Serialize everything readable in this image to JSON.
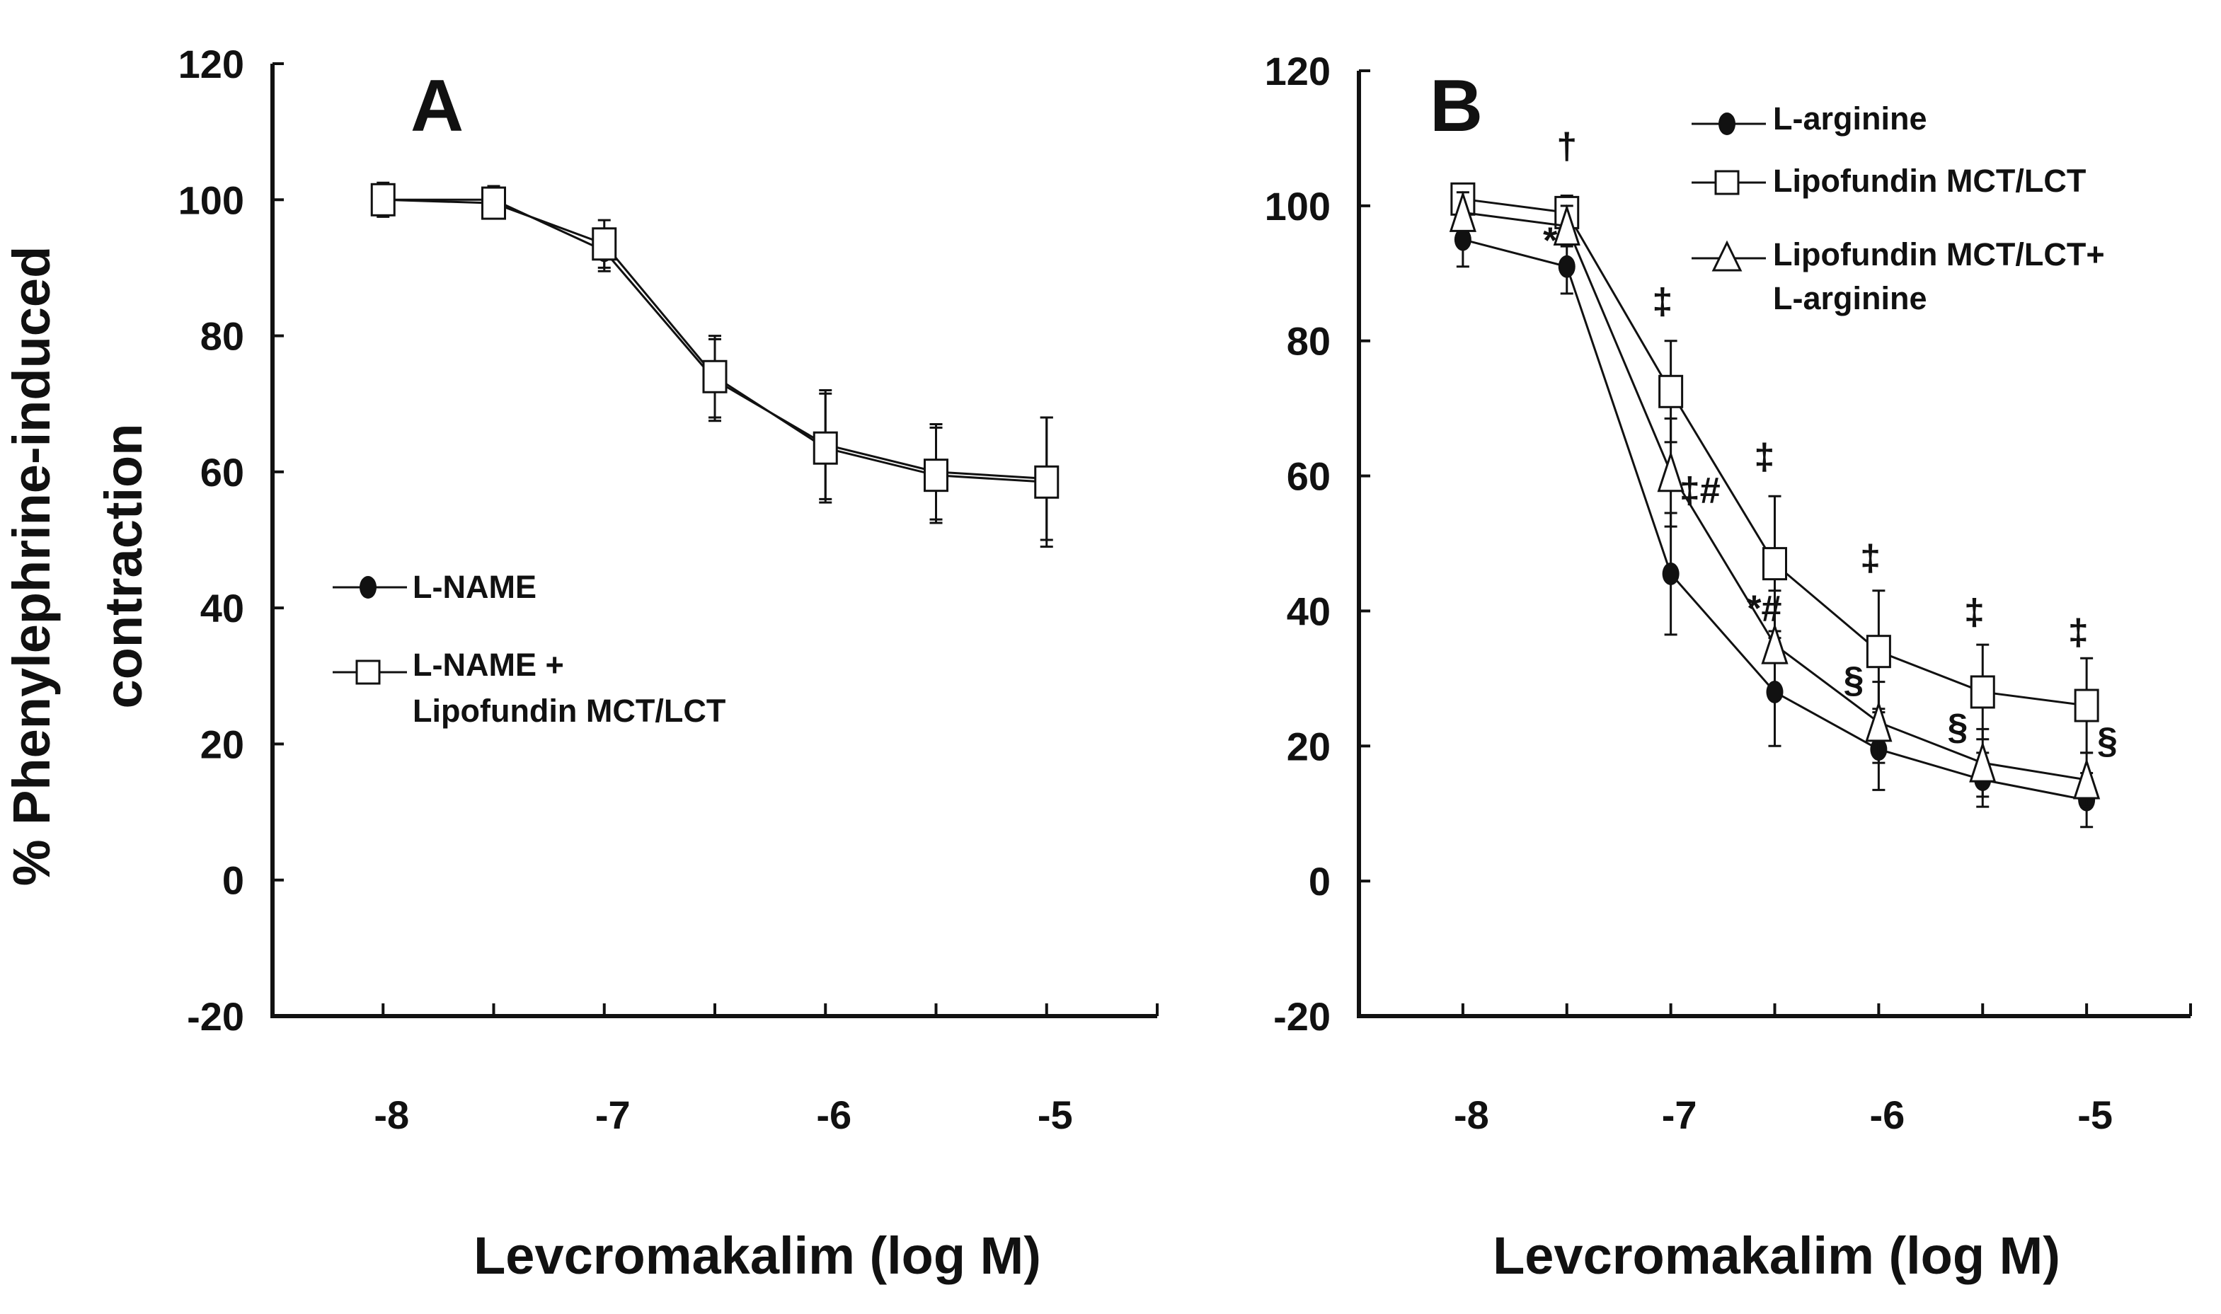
{
  "chart_data": [
    {
      "type": "line",
      "panel_label": "A",
      "xlabel": "Levcromakalim (log M)",
      "ylabel": [
        "% Phenylephrine-induced",
        "contraction"
      ],
      "ylim": [
        -20,
        120
      ],
      "xlim": [
        -8.5,
        -4.5
      ],
      "yticks": [
        -20,
        0,
        20,
        40,
        60,
        80,
        100,
        120
      ],
      "xticks": [
        -8,
        -7,
        -6,
        -5
      ],
      "x": [
        -8,
        -7.5,
        -7,
        -6.5,
        -6,
        -5.5,
        -5
      ],
      "legend_position": "middle-left",
      "series": [
        {
          "name": "L-NAME",
          "marker": "filled-circle",
          "values": [
            100,
            100,
            92.5,
            73.5,
            64,
            60,
            59
          ],
          "errors": [
            2,
            2,
            3,
            6,
            8,
            7,
            9
          ]
        },
        {
          "name": "L-NAME  + Lipofundin MCT/LCT",
          "legend_lines": [
            "L-NAME  +",
            "Lipofundin MCT/LCT"
          ],
          "marker": "open-square",
          "values": [
            100,
            99.5,
            93.5,
            74,
            63.5,
            59.5,
            58.5
          ],
          "errors": [
            2.5,
            2,
            3.5,
            6,
            8,
            7,
            9.5
          ]
        }
      ]
    },
    {
      "type": "line",
      "panel_label": "B",
      "xlabel": "Levcromakalim (log M)",
      "ylim": [
        -20,
        120
      ],
      "xlim": [
        -8.5,
        -4.5
      ],
      "yticks": [
        -20,
        0,
        20,
        40,
        60,
        80,
        100,
        120
      ],
      "xticks": [
        -8,
        -7,
        -6,
        -5
      ],
      "x": [
        -8,
        -7.5,
        -7,
        -6.5,
        -6,
        -5.5,
        -5
      ],
      "legend_position": "top-right",
      "series": [
        {
          "name": "L-arginine",
          "marker": "filled-circle",
          "values": [
            95,
            91,
            45.5,
            28,
            19.5,
            15,
            12
          ],
          "errors": [
            4,
            4,
            9,
            8,
            6,
            4,
            4
          ]
        },
        {
          "name": "Lipofundin MCT/LCT",
          "marker": "open-square",
          "values": [
            101,
            99,
            72.5,
            47,
            34,
            28,
            26
          ],
          "errors": [
            2,
            2.5,
            7.5,
            10,
            9,
            7,
            7
          ]
        },
        {
          "name": "Lipofundin MCT/LCT+ L-arginine",
          "legend_lines": [
            "Lipofundin MCT/LCT+",
            "L-arginine"
          ],
          "marker": "open-triangle",
          "values": [
            99,
            97,
            60.5,
            35,
            23.5,
            17.5,
            15
          ],
          "errors": [
            3,
            3,
            8,
            8,
            6,
            5,
            4
          ]
        }
      ],
      "annotations": [
        {
          "text": "†",
          "x": -7.5,
          "y": 107
        },
        {
          "text": "*",
          "x": -7.58,
          "y": 93
        },
        {
          "text": "‡",
          "x": -7.04,
          "y": 84
        },
        {
          "text": "‡#",
          "x": -6.86,
          "y": 56
        },
        {
          "text": "‡",
          "x": -6.55,
          "y": 61
        },
        {
          "text": "*#",
          "x": -6.55,
          "y": 38.5
        },
        {
          "text": "§",
          "x": -6.12,
          "y": 28
        },
        {
          "text": "‡",
          "x": -6.04,
          "y": 46
        },
        {
          "text": "§",
          "x": -5.62,
          "y": 21
        },
        {
          "text": "‡",
          "x": -5.54,
          "y": 38
        },
        {
          "text": "§",
          "x": -4.9,
          "y": 19
        },
        {
          "text": "‡",
          "x": -5.04,
          "y": 35
        }
      ]
    }
  ]
}
